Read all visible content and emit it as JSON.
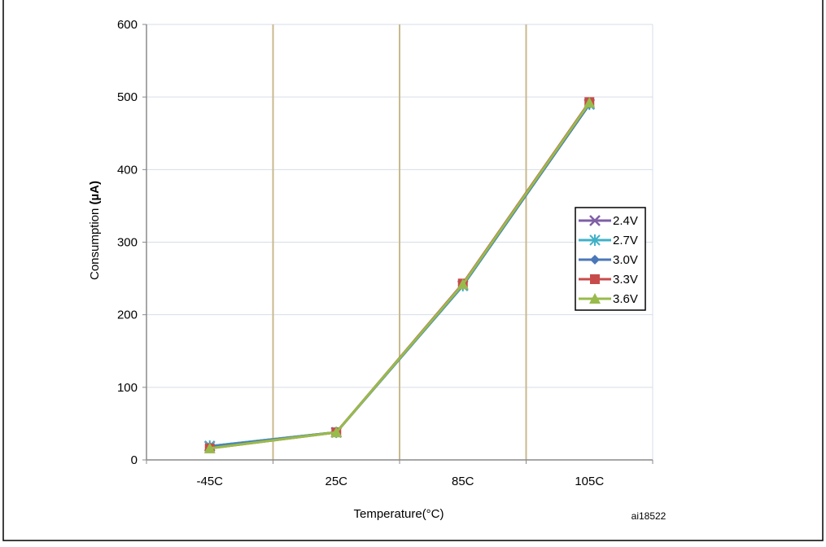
{
  "page_title_partial": "",
  "figure_id": "ai18522",
  "chart_data": {
    "type": "line",
    "categories": [
      "-45C",
      "25C",
      "85C",
      "105C"
    ],
    "xlabel": "Temperature(°C)",
    "ylabel_prefix": "Consumption ",
    "ylabel_unit": "(µA)",
    "ylim": [
      0,
      600
    ],
    "yticks": [
      0,
      100,
      200,
      300,
      400,
      500,
      600
    ],
    "grid": "on",
    "legend_position": "right",
    "series": [
      {
        "name": "2.4V",
        "values": [
          19,
          38,
          240,
          490
        ],
        "color": "#7f5fa6",
        "marker": "x"
      },
      {
        "name": "2.7V",
        "values": [
          19,
          38,
          240,
          490
        ],
        "color": "#3fb1c8",
        "marker": "asterisk"
      },
      {
        "name": "3.0V",
        "values": [
          18,
          38,
          241,
          490
        ],
        "color": "#4a77b8",
        "marker": "diamond"
      },
      {
        "name": "3.3V",
        "values": [
          16,
          38,
          243,
          493
        ],
        "color": "#c84b4b",
        "marker": "square"
      },
      {
        "name": "3.6V",
        "values": [
          16,
          38,
          242,
          492
        ],
        "color": "#98bb4b",
        "marker": "triangle"
      }
    ]
  },
  "colors": {
    "horizontal_grid": "#d6dde8",
    "vertical_grid": "#c9b98f",
    "axis": "#8a8a8a"
  }
}
